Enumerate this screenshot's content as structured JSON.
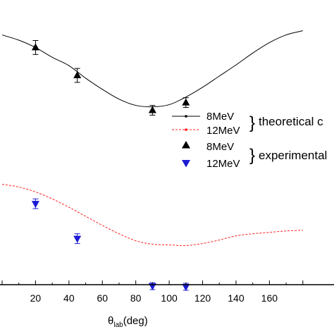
{
  "chart_data": {
    "type": "scatter",
    "xlabel_symbol": "θ",
    "xlabel_subscript": "lab",
    "xlabel_rest": "(deg)",
    "xlim": [
      0,
      180
    ],
    "x_ticks": [
      20,
      40,
      60,
      80,
      100,
      120,
      140,
      160
    ],
    "series": [
      {
        "name": "8MeV",
        "kind": "line",
        "color": "#000000",
        "dash": "solid",
        "x": [
          0,
          10,
          20,
          30,
          40,
          50,
          60,
          70,
          80,
          90,
          100,
          110,
          120,
          130,
          140,
          150,
          160,
          170,
          180
        ],
        "y": [
          58,
          50.5,
          40,
          26,
          14,
          -4,
          -20,
          -34,
          -43,
          -45,
          -42,
          -31,
          -17,
          -1,
          15,
          32,
          47,
          58,
          64
        ]
      },
      {
        "name": "12MeV",
        "kind": "line",
        "color": "#ff2020",
        "dash": "dashed",
        "x": [
          0,
          10,
          20,
          30,
          40,
          50,
          60,
          70,
          80,
          90,
          100,
          110,
          120,
          130,
          140,
          150,
          160,
          170,
          180
        ],
        "y": [
          -156,
          -160,
          -167,
          -177,
          -189,
          -202,
          -215,
          -227,
          -237,
          -242,
          -243,
          -244,
          -241,
          -236,
          -230,
          -227,
          -225,
          -223,
          -222
        ]
      },
      {
        "name": "8MeV",
        "kind": "points",
        "marker": "triangle-up",
        "color": "#000000",
        "x": [
          20,
          45,
          90,
          110
        ],
        "y": [
          40,
          0,
          -50,
          -39
        ],
        "err": [
          10,
          10,
          7,
          7
        ]
      },
      {
        "name": "12MeV",
        "kind": "points",
        "marker": "triangle-down",
        "color": "#1a1ad6",
        "x": [
          20,
          45,
          90,
          110
        ],
        "y": [
          -184,
          -234,
          -302,
          -303
        ],
        "err": [
          7,
          7,
          5,
          5
        ]
      }
    ],
    "legend": {
      "placement": "right",
      "groups": [
        {
          "label": "theoretical c",
          "entries": [
            "8MeV",
            "12MeV"
          ]
        },
        {
          "label": "experimental",
          "entries": [
            "8MeV",
            "12MeV"
          ]
        }
      ]
    }
  }
}
